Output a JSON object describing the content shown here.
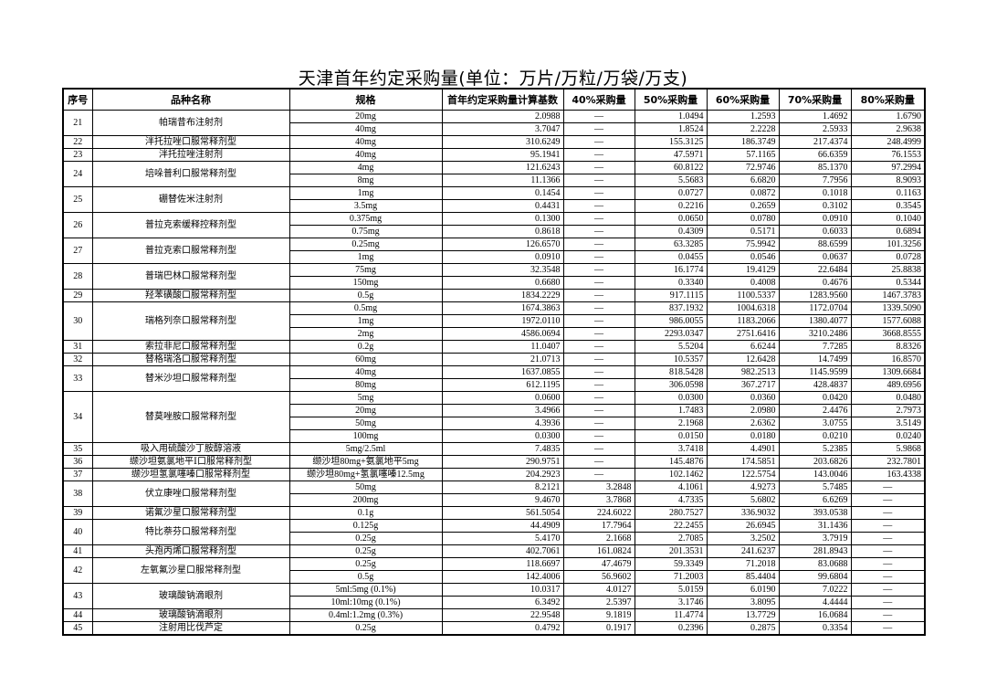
{
  "title": "天津首年约定采购量(单位：万片/万粒/万袋/万支)",
  "headers": [
    "序号",
    "品种名称",
    "规格",
    "首年约定采购量计算基数",
    "40%采购量",
    "50%采购量",
    "60%采购量",
    "70%采购量",
    "80%采购量"
  ],
  "groups": [
    {
      "no": "21",
      "name": "帕瑞昔布注射剂",
      "rows": [
        [
          "20mg",
          "2.0988",
          "—",
          "1.0494",
          "1.2593",
          "1.4692",
          "1.6790"
        ],
        [
          "40mg",
          "3.7047",
          "—",
          "1.8524",
          "2.2228",
          "2.5933",
          "2.9638"
        ]
      ]
    },
    {
      "no": "22",
      "name": "泮托拉唑口服常释剂型",
      "rows": [
        [
          "40mg",
          "310.6249",
          "—",
          "155.3125",
          "186.3749",
          "217.4374",
          "248.4999"
        ]
      ]
    },
    {
      "no": "23",
      "name": "泮托拉唑注射剂",
      "rows": [
        [
          "40mg",
          "95.1941",
          "—",
          "47.5971",
          "57.1165",
          "66.6359",
          "76.1553"
        ]
      ]
    },
    {
      "no": "24",
      "name": "培哚普利口服常释剂型",
      "rows": [
        [
          "4mg",
          "121.6243",
          "—",
          "60.8122",
          "72.9746",
          "85.1370",
          "97.2994"
        ],
        [
          "8mg",
          "11.1366",
          "—",
          "5.5683",
          "6.6820",
          "7.7956",
          "8.9093"
        ]
      ]
    },
    {
      "no": "25",
      "name": "硼替佐米注射剂",
      "rows": [
        [
          "1mg",
          "0.1454",
          "—",
          "0.0727",
          "0.0872",
          "0.1018",
          "0.1163"
        ],
        [
          "3.5mg",
          "0.4431",
          "—",
          "0.2216",
          "0.2659",
          "0.3102",
          "0.3545"
        ]
      ]
    },
    {
      "no": "26",
      "name": "普拉克索缓释控释剂型",
      "rows": [
        [
          "0.375mg",
          "0.1300",
          "—",
          "0.0650",
          "0.0780",
          "0.0910",
          "0.1040"
        ],
        [
          "0.75mg",
          "0.8618",
          "—",
          "0.4309",
          "0.5171",
          "0.6033",
          "0.6894"
        ]
      ]
    },
    {
      "no": "27",
      "name": "普拉克索口服常释剂型",
      "rows": [
        [
          "0.25mg",
          "126.6570",
          "—",
          "63.3285",
          "75.9942",
          "88.6599",
          "101.3256"
        ],
        [
          "1mg",
          "0.0910",
          "—",
          "0.0455",
          "0.0546",
          "0.0637",
          "0.0728"
        ]
      ]
    },
    {
      "no": "28",
      "name": "普瑞巴林口服常释剂型",
      "rows": [
        [
          "75mg",
          "32.3548",
          "—",
          "16.1774",
          "19.4129",
          "22.6484",
          "25.8838"
        ],
        [
          "150mg",
          "0.6680",
          "—",
          "0.3340",
          "0.4008",
          "0.4676",
          "0.5344"
        ]
      ]
    },
    {
      "no": "29",
      "name": "羟苯磺酸口服常释剂型",
      "rows": [
        [
          "0.5g",
          "1834.2229",
          "—",
          "917.1115",
          "1100.5337",
          "1283.9560",
          "1467.3783"
        ]
      ]
    },
    {
      "no": "30",
      "name": "瑞格列奈口服常释剂型",
      "rows": [
        [
          "0.5mg",
          "1674.3863",
          "—",
          "837.1932",
          "1004.6318",
          "1172.0704",
          "1339.5090"
        ],
        [
          "1mg",
          "1972.0110",
          "—",
          "986.0055",
          "1183.2066",
          "1380.4077",
          "1577.6088"
        ],
        [
          "2mg",
          "4586.0694",
          "—",
          "2293.0347",
          "2751.6416",
          "3210.2486",
          "3668.8555"
        ]
      ]
    },
    {
      "no": "31",
      "name": "索拉非尼口服常释剂型",
      "rows": [
        [
          "0.2g",
          "11.0407",
          "—",
          "5.5204",
          "6.6244",
          "7.7285",
          "8.8326"
        ]
      ]
    },
    {
      "no": "32",
      "name": "替格瑞洛口服常释剂型",
      "rows": [
        [
          "60mg",
          "21.0713",
          "—",
          "10.5357",
          "12.6428",
          "14.7499",
          "16.8570"
        ]
      ]
    },
    {
      "no": "33",
      "name": "替米沙坦口服常释剂型",
      "rows": [
        [
          "40mg",
          "1637.0855",
          "—",
          "818.5428",
          "982.2513",
          "1145.9599",
          "1309.6684"
        ],
        [
          "80mg",
          "612.1195",
          "—",
          "306.0598",
          "367.2717",
          "428.4837",
          "489.6956"
        ]
      ]
    },
    {
      "no": "34",
      "name": "替莫唑胺口服常释剂型",
      "rows": [
        [
          "5mg",
          "0.0600",
          "—",
          "0.0300",
          "0.0360",
          "0.0420",
          "0.0480"
        ],
        [
          "20mg",
          "3.4966",
          "—",
          "1.7483",
          "2.0980",
          "2.4476",
          "2.7973"
        ],
        [
          "50mg",
          "4.3936",
          "—",
          "2.1968",
          "2.6362",
          "3.0755",
          "3.5149"
        ],
        [
          "100mg",
          "0.0300",
          "—",
          "0.0150",
          "0.0180",
          "0.0210",
          "0.0240"
        ]
      ]
    },
    {
      "no": "35",
      "name": "吸入用硫酸沙丁胺醇溶液",
      "rows": [
        [
          "5mg/2.5ml",
          "7.4835",
          "—",
          "3.7418",
          "4.4901",
          "5.2385",
          "5.9868"
        ]
      ]
    },
    {
      "no": "36",
      "name": "缬沙坦氨氯地平Ⅰ口服常释剂型",
      "rows": [
        [
          "缬沙坦80mg+氨氯地平5mg",
          "290.9751",
          "—",
          "145.4876",
          "174.5851",
          "203.6826",
          "232.7801"
        ]
      ]
    },
    {
      "no": "37",
      "name": "缬沙坦氢氯噻嗪口服常释剂型",
      "rows": [
        [
          "缬沙坦80mg+氢氯噻嗪12.5mg",
          "204.2923",
          "—",
          "102.1462",
          "122.5754",
          "143.0046",
          "163.4338"
        ]
      ]
    },
    {
      "no": "38",
      "name": "伏立康唑口服常释剂型",
      "rows": [
        [
          "50mg",
          "8.2121",
          "3.2848",
          "4.1061",
          "4.9273",
          "5.7485",
          "—"
        ],
        [
          "200mg",
          "9.4670",
          "3.7868",
          "4.7335",
          "5.6802",
          "6.6269",
          "—"
        ]
      ]
    },
    {
      "no": "39",
      "name": "诺氟沙星口服常释剂型",
      "rows": [
        [
          "0.1g",
          "561.5054",
          "224.6022",
          "280.7527",
          "336.9032",
          "393.0538",
          "—"
        ]
      ]
    },
    {
      "no": "40",
      "name": "特比萘芬口服常释剂型",
      "rows": [
        [
          "0.125g",
          "44.4909",
          "17.7964",
          "22.2455",
          "26.6945",
          "31.1436",
          "—"
        ],
        [
          "0.25g",
          "5.4170",
          "2.1668",
          "2.7085",
          "3.2502",
          "3.7919",
          "—"
        ]
      ]
    },
    {
      "no": "41",
      "name": "头孢丙烯口服常释剂型",
      "rows": [
        [
          "0.25g",
          "402.7061",
          "161.0824",
          "201.3531",
          "241.6237",
          "281.8943",
          "—"
        ]
      ]
    },
    {
      "no": "42",
      "name": "左氧氟沙星口服常释剂型",
      "rows": [
        [
          "0.25g",
          "118.6697",
          "47.4679",
          "59.3349",
          "71.2018",
          "83.0688",
          "—"
        ],
        [
          "0.5g",
          "142.4006",
          "56.9602",
          "71.2003",
          "85.4404",
          "99.6804",
          "—"
        ]
      ]
    },
    {
      "no": "43",
      "name": "玻璃酸钠滴眼剂",
      "rows": [
        [
          "5ml:5mg (0.1%)",
          "10.0317",
          "4.0127",
          "5.0159",
          "6.0190",
          "7.0222",
          "—"
        ],
        [
          "10ml:10mg (0.1%)",
          "6.3492",
          "2.5397",
          "3.1746",
          "3.8095",
          "4.4444",
          "—"
        ]
      ]
    },
    {
      "no": "44",
      "name": "玻璃酸钠滴眼剂",
      "rows": [
        [
          "0.4ml:1.2mg (0.3%)",
          "22.9548",
          "9.1819",
          "11.4774",
          "13.7729",
          "16.0684",
          "—"
        ]
      ]
    },
    {
      "no": "45",
      "name": "注射用比伐芦定",
      "rows": [
        [
          "0.25g",
          "0.4792",
          "0.1917",
          "0.2396",
          "0.2875",
          "0.3354",
          "—"
        ]
      ]
    }
  ]
}
